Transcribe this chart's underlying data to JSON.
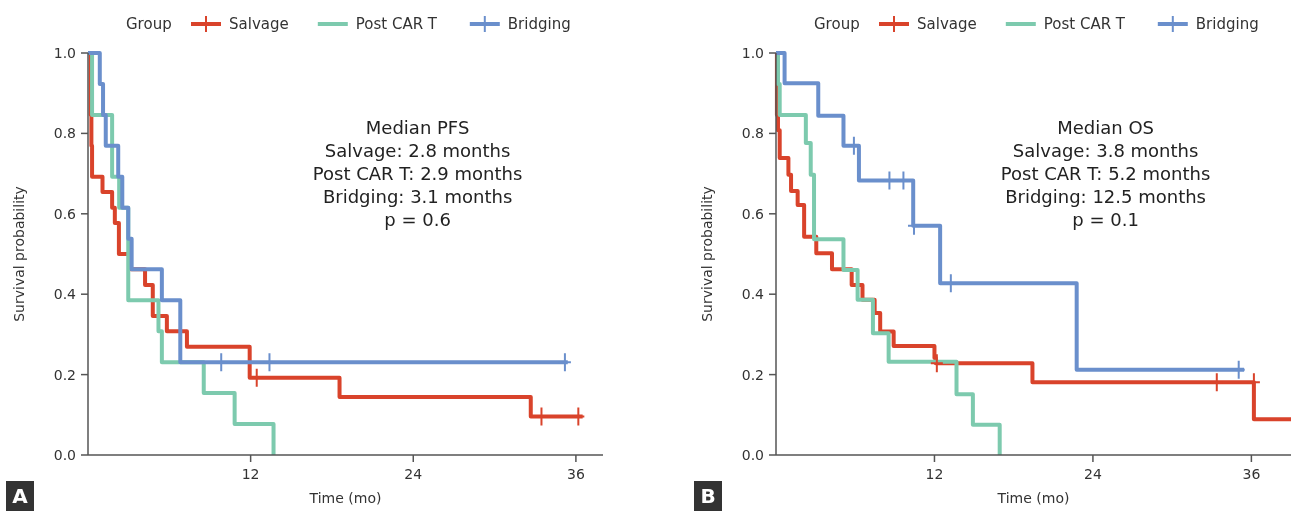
{
  "chart_data": [
    {
      "type": "step",
      "title": "A",
      "xlabel": "Time (mo)",
      "ylabel": "Survival probability",
      "legend_title": "Group",
      "legend": "top",
      "xlim": [
        0,
        38
      ],
      "xticks": [
        12,
        24,
        36
      ],
      "ylim": [
        0,
        1
      ],
      "yticks": [
        {
          "value": 0,
          "label": "0.0"
        },
        {
          "value": 0.2,
          "label": "0.2"
        },
        {
          "value": 0.4,
          "label": "0.4"
        },
        {
          "value": 0.6,
          "label": "0.6"
        },
        {
          "value": 0.8,
          "label": "0.8"
        },
        {
          "value": 1,
          "label": "1.0"
        }
      ],
      "annotations": [
        "Median PFS",
        "Salvage: 2.8 months",
        "Post CAR T: 2.9 months",
        "Bridging: 3.1 months",
        "p = 0.6"
      ],
      "series": [
        {
          "name": "Salvage",
          "color": "#d9432b",
          "x": [
            0,
            0.2,
            0.25,
            0.3,
            1.07,
            1.78,
            1.98,
            2.28,
            3.15,
            4.21,
            4.78,
            5.82,
            7.3,
            11.93,
            18.56,
            32.67,
            36.5
          ],
          "values": [
            1,
            0.846,
            0.769,
            0.692,
            0.654,
            0.615,
            0.577,
            0.5,
            0.462,
            0.423,
            0.346,
            0.308,
            0.269,
            0.192,
            0.144,
            0.096,
            0.096
          ]
        },
        {
          "name": "Post CAR T",
          "color": "#7dcaae",
          "x": [
            0,
            0.3,
            1.78,
            2.3,
            2.97,
            5.2,
            5.45,
            8.54,
            10.82,
            13.69
          ],
          "values": [
            1,
            0.846,
            0.692,
            0.615,
            0.385,
            0.308,
            0.231,
            0.154,
            0.077,
            0
          ]
        },
        {
          "name": "Bridging",
          "color": "#6a8fcc",
          "x": [
            0,
            0.87,
            1.11,
            1.31,
            2.23,
            2.53,
            2.97,
            3.22,
            5.45,
            6.81,
            35.4
          ],
          "values": [
            1,
            0.923,
            0.846,
            0.769,
            0.692,
            0.615,
            0.538,
            0.462,
            0.385,
            0.231,
            0.231
          ]
        },
        {
          "type": "scatter",
          "marker": "cross",
          "color": "#d9432b",
          "x": [
            12.45,
            33.46,
            36.18
          ],
          "values": [
            0.192,
            0.096,
            0.096
          ]
        },
        {
          "type": "scatter",
          "marker": "cross",
          "color": "#6a8fcc",
          "x": [
            9.83,
            13.39,
            35.19
          ],
          "values": [
            0.231,
            0.231,
            0.231
          ]
        }
      ]
    },
    {
      "type": "step",
      "title": "B",
      "xlabel": "Time (mo)",
      "ylabel": "Survival probability",
      "legend_title": "Group",
      "legend": "top",
      "xlim": [
        0,
        39
      ],
      "xticks": [
        12,
        24,
        36
      ],
      "ylim": [
        0,
        1
      ],
      "yticks": [
        {
          "value": 0,
          "label": "0.0"
        },
        {
          "value": 0.2,
          "label": "0.2"
        },
        {
          "value": 0.4,
          "label": "0.4"
        },
        {
          "value": 0.6,
          "label": "0.6"
        },
        {
          "value": 0.8,
          "label": "0.8"
        },
        {
          "value": 1,
          "label": "1.0"
        }
      ],
      "annotations": [
        "Median OS",
        "Salvage: 3.8 months",
        "Post CAR T: 5.2 months",
        "Bridging: 12.5 months",
        "p = 0.1"
      ],
      "series": [
        {
          "name": "Salvage",
          "color": "#d9432b",
          "x": [
            0,
            0.07,
            0.15,
            0.28,
            0.94,
            1.14,
            1.64,
            2.13,
            3.05,
            4.24,
            5.73,
            6.55,
            7.47,
            7.89,
            8.91,
            12.0,
            12.1,
            19.42,
            36.19,
            39
          ],
          "values": [
            1,
            0.846,
            0.808,
            0.739,
            0.697,
            0.657,
            0.622,
            0.543,
            0.502,
            0.462,
            0.423,
            0.386,
            0.353,
            0.307,
            0.271,
            0.241,
            0.228,
            0.181,
            0.089,
            0.089
          ]
        },
        {
          "name": "Post CAR T",
          "color": "#7dcaae",
          "x": [
            0,
            0.15,
            0.28,
            2.26,
            2.63,
            2.88,
            5.11,
            6.18,
            7.34,
            8.53,
            13.67,
            14.91,
            16.94
          ],
          "values": [
            1,
            0.923,
            0.846,
            0.776,
            0.697,
            0.537,
            0.46,
            0.386,
            0.303,
            0.232,
            0.151,
            0.075,
            0
          ]
        },
        {
          "name": "Bridging",
          "color": "#6a8fcc",
          "x": [
            0,
            0.65,
            3.2,
            5.11,
            6.28,
            10.39,
            12.43,
            22.77,
            35.45
          ],
          "values": [
            1,
            0.925,
            0.844,
            0.769,
            0.683,
            0.57,
            0.427,
            0.212,
            0.212
          ]
        },
        {
          "type": "scatter",
          "marker": "cross",
          "color": "#d9432b",
          "x": [
            12.18,
            33.38,
            36.19
          ],
          "values": [
            0.228,
            0.181,
            0.181
          ]
        },
        {
          "type": "scatter",
          "marker": "cross",
          "color": "#6a8fcc",
          "x": [
            5.9,
            8.59,
            9.65,
            10.45,
            13.24,
            35.04
          ],
          "values": [
            0.769,
            0.683,
            0.683,
            0.57,
            0.427,
            0.212
          ]
        }
      ]
    }
  ]
}
